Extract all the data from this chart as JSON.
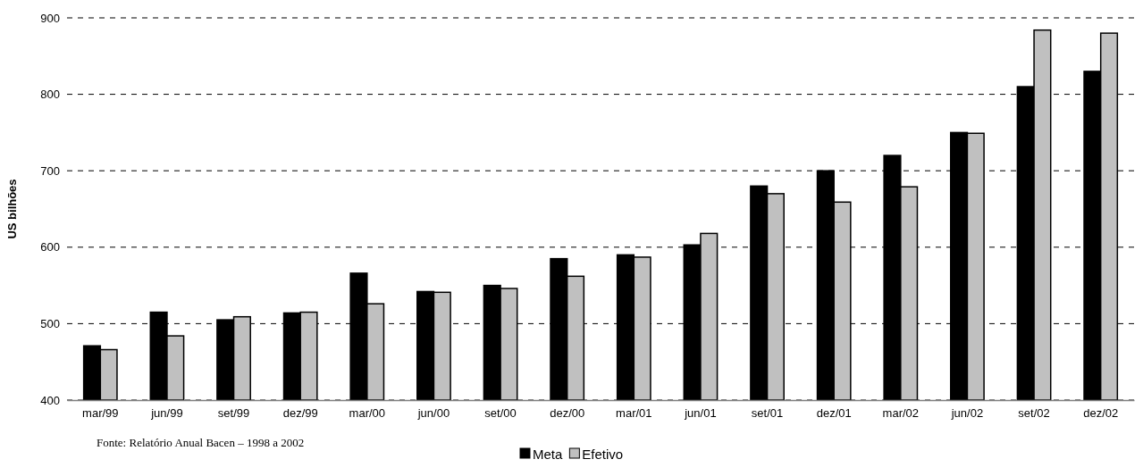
{
  "chart_data": {
    "type": "bar",
    "ylabel": "US bilhões",
    "categories": [
      "mar/99",
      "jun/99",
      "set/99",
      "dez/99",
      "mar/00",
      "jun/00",
      "set/00",
      "dez/00",
      "mar/01",
      "jun/01",
      "set/01",
      "dez/01",
      "mar/02",
      "jun/02",
      "set/02",
      "dez/02"
    ],
    "series": [
      {
        "name": "Meta",
        "color": "#000000",
        "values": [
          471,
          515,
          505,
          514,
          566,
          542,
          550,
          585,
          590,
          603,
          680,
          700,
          720,
          750,
          810,
          830
        ]
      },
      {
        "name": "Efetivo",
        "color": "#c0c0c0",
        "values": [
          466,
          484,
          509,
          515,
          526,
          541,
          546,
          562,
          587,
          618,
          670,
          659,
          679,
          749,
          884,
          880
        ]
      }
    ],
    "ylim": [
      400,
      900
    ],
    "yticks": [
      400,
      500,
      600,
      700,
      800,
      900
    ],
    "grid": "y",
    "legend": "bottom",
    "annotations": [
      "Fonte: Relatório Anual Bacen – 1998 a 2002"
    ]
  }
}
